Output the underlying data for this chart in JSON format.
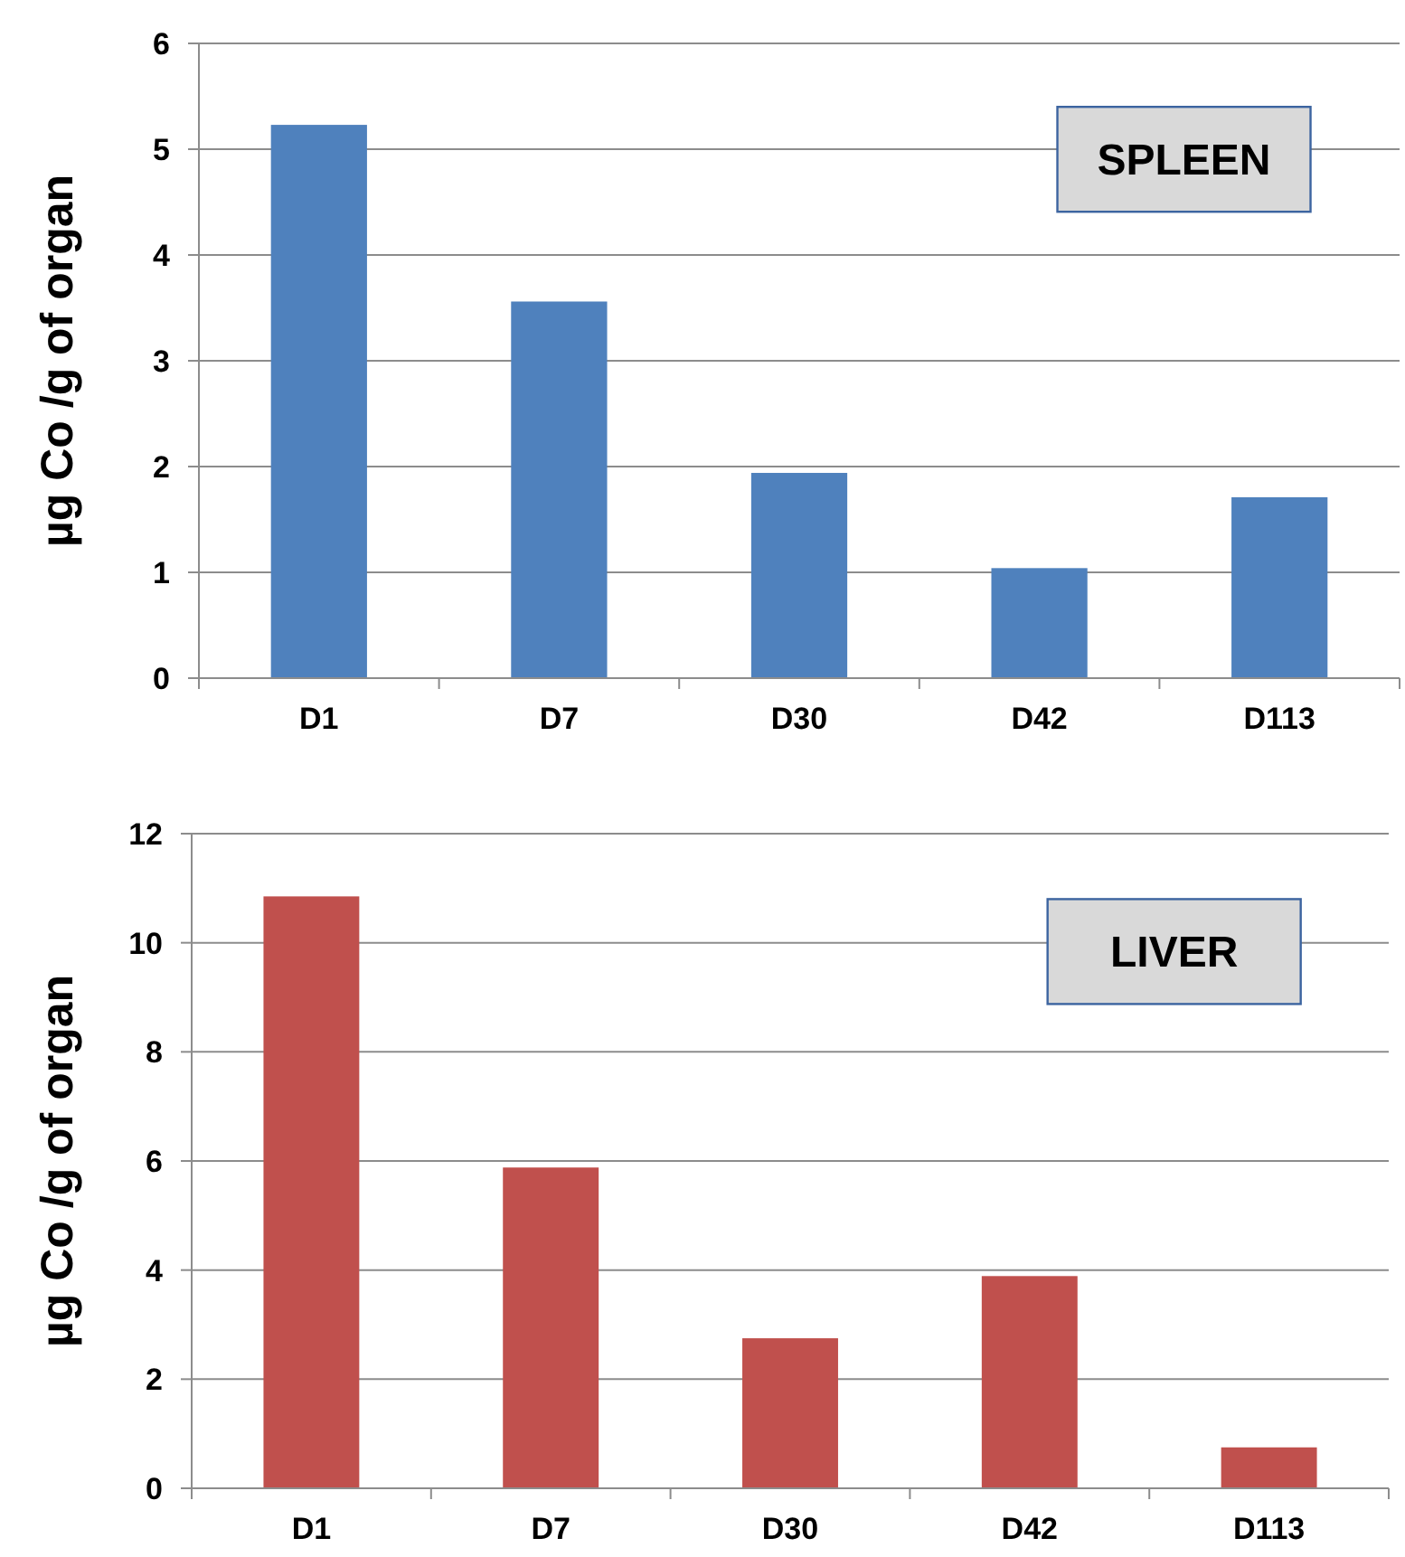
{
  "chart_data": [
    {
      "type": "bar",
      "title": "SPLEEN",
      "ylabel": "µg Co /g of organ",
      "categories": [
        "D1",
        "D7",
        "D30",
        "D42",
        "D113"
      ],
      "values": [
        5.23,
        3.56,
        1.94,
        1.04,
        1.71
      ],
      "color": "#4f81bd",
      "ylim": [
        0,
        6
      ],
      "yticks": [
        0,
        1,
        2,
        3,
        4,
        5,
        6
      ],
      "grid": "y"
    },
    {
      "type": "bar",
      "title": "LIVER",
      "ylabel": "µg Co /g of organ",
      "categories": [
        "D1",
        "D7",
        "D30",
        "D42",
        "D113"
      ],
      "values": [
        10.85,
        5.88,
        2.75,
        3.89,
        0.75
      ],
      "color": "#c0504d",
      "ylim": [
        0,
        12
      ],
      "yticks": [
        0,
        2,
        4,
        6,
        8,
        10,
        12
      ],
      "grid": "y"
    }
  ]
}
